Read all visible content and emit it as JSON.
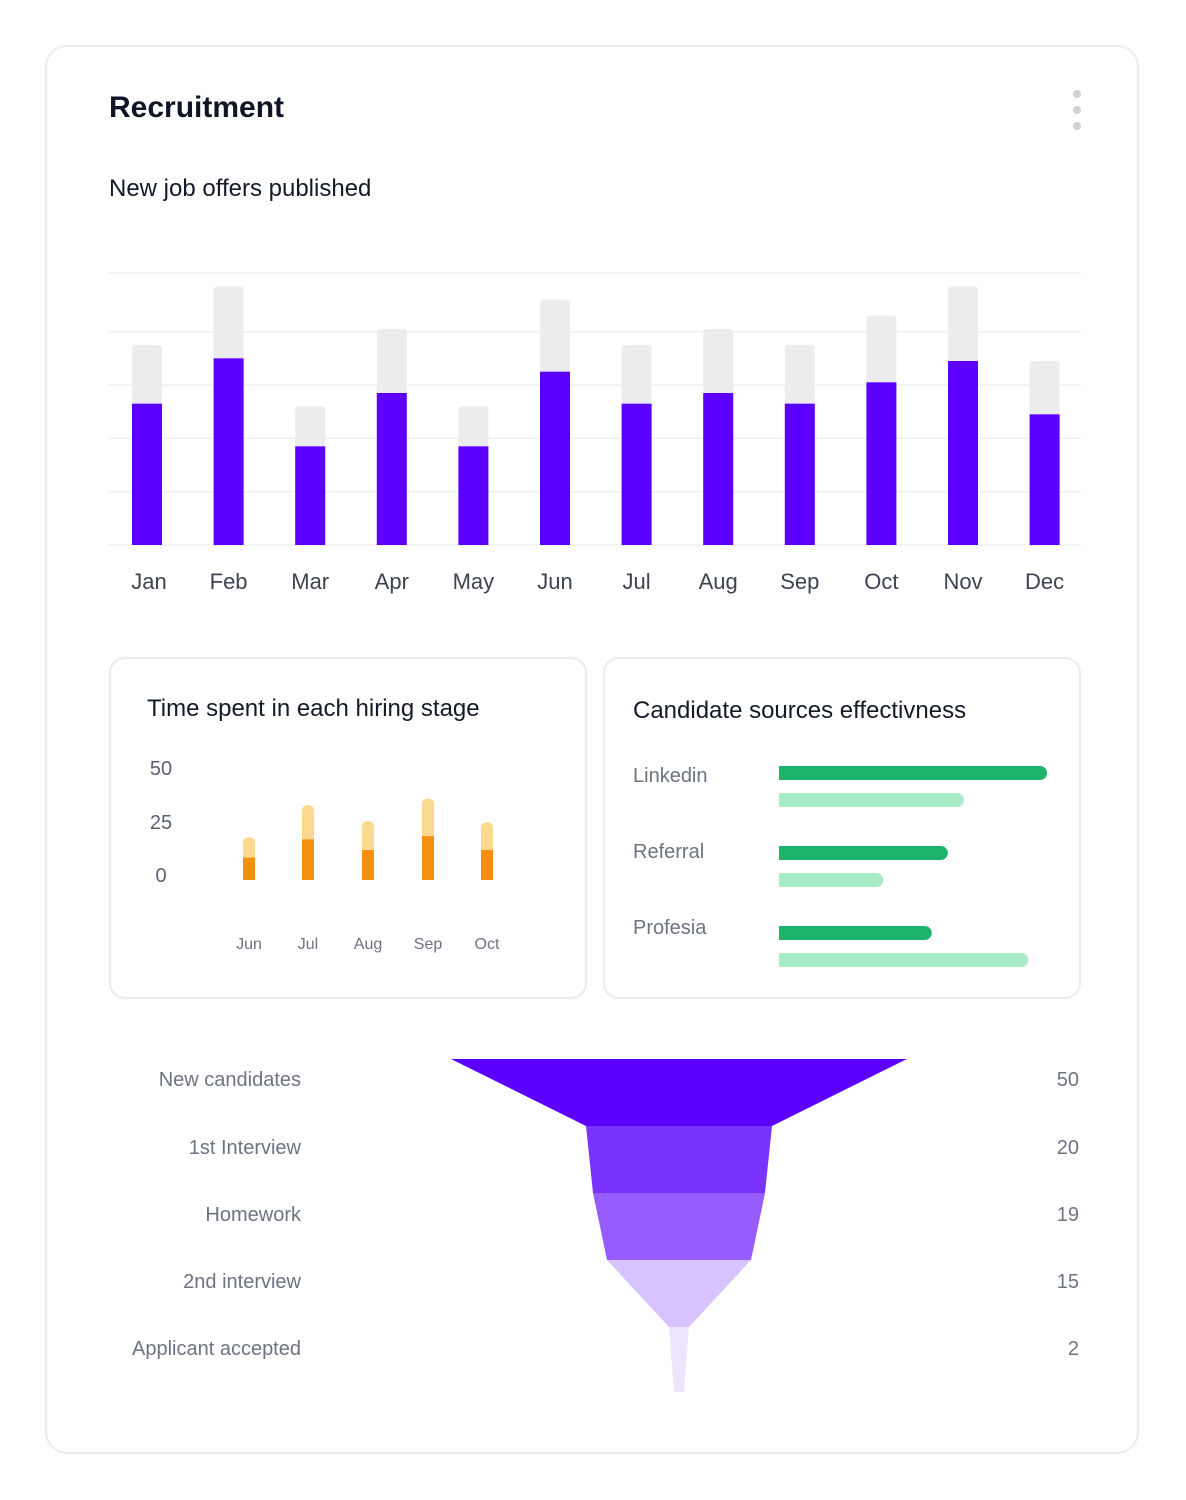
{
  "header": {
    "title": "Recruitment",
    "menu_icon": "kebab-menu-icon"
  },
  "colors": {
    "bar_primary": "#5b00ff",
    "bar_track": "#ececef",
    "stage_dark": "#f5900f",
    "stage_light": "#fdd88f",
    "source_dark": "#1cb46a",
    "source_light": "#a9ecc8",
    "funnel": [
      "#5b00ff",
      "#7a33ff",
      "#965cff",
      "#d6c3ff",
      "#ece5fd"
    ]
  },
  "chart_data": [
    {
      "type": "bar",
      "title": "New job offers published",
      "categories": [
        "Jan",
        "Feb",
        "Mar",
        "Apr",
        "May",
        "Jun",
        "Jul",
        "Aug",
        "Sep",
        "Oct",
        "Nov",
        "Dec"
      ],
      "series": [
        {
          "values": [
            26.5,
            35,
            18.5,
            28.5,
            18.5,
            32.5,
            26.5,
            28.5,
            26.5,
            30.5,
            34.5,
            24.5
          ]
        },
        {
          "values": [
            37.5,
            48.5,
            26,
            40.5,
            26,
            46,
            37.5,
            40.5,
            37.5,
            43,
            48.5,
            34.5
          ]
        }
      ],
      "stacked": false,
      "ylim": [
        0,
        51
      ],
      "gridlines": [
        0,
        10,
        20,
        30,
        40,
        51
      ],
      "grid": true,
      "legend": "none"
    },
    {
      "type": "bar",
      "title": "Time spent in each hiring stage",
      "categories": [
        "Jun",
        "Jul",
        "Aug",
        "Sep",
        "Oct"
      ],
      "yticks": [
        50,
        25,
        0
      ],
      "series": [
        {
          "values": [
            10.5,
            19,
            14,
            20.5,
            14
          ]
        },
        {
          "values": [
            9.5,
            16,
            13.5,
            17.5,
            13
          ]
        }
      ],
      "stacked": true,
      "legend": "none"
    },
    {
      "type": "bar",
      "orientation": "horizontal",
      "title": "Candidate sources effectivness",
      "categories": [
        "Linkedin",
        "Referral",
        "Profesia"
      ],
      "series": [
        {
          "values": [
            100,
            63,
            57
          ]
        },
        {
          "values": [
            69,
            39,
            93
          ]
        }
      ],
      "xlim": [
        0,
        100
      ],
      "legend": "none"
    },
    {
      "type": "funnel",
      "stages": [
        {
          "label": "New candidates",
          "value": "50"
        },
        {
          "label": "1st Interview",
          "value": "20"
        },
        {
          "label": "Homework",
          "value": "19"
        },
        {
          "label": "2nd interview",
          "value": "15"
        },
        {
          "label": "Applicant accepted",
          "value": "2"
        }
      ]
    }
  ]
}
